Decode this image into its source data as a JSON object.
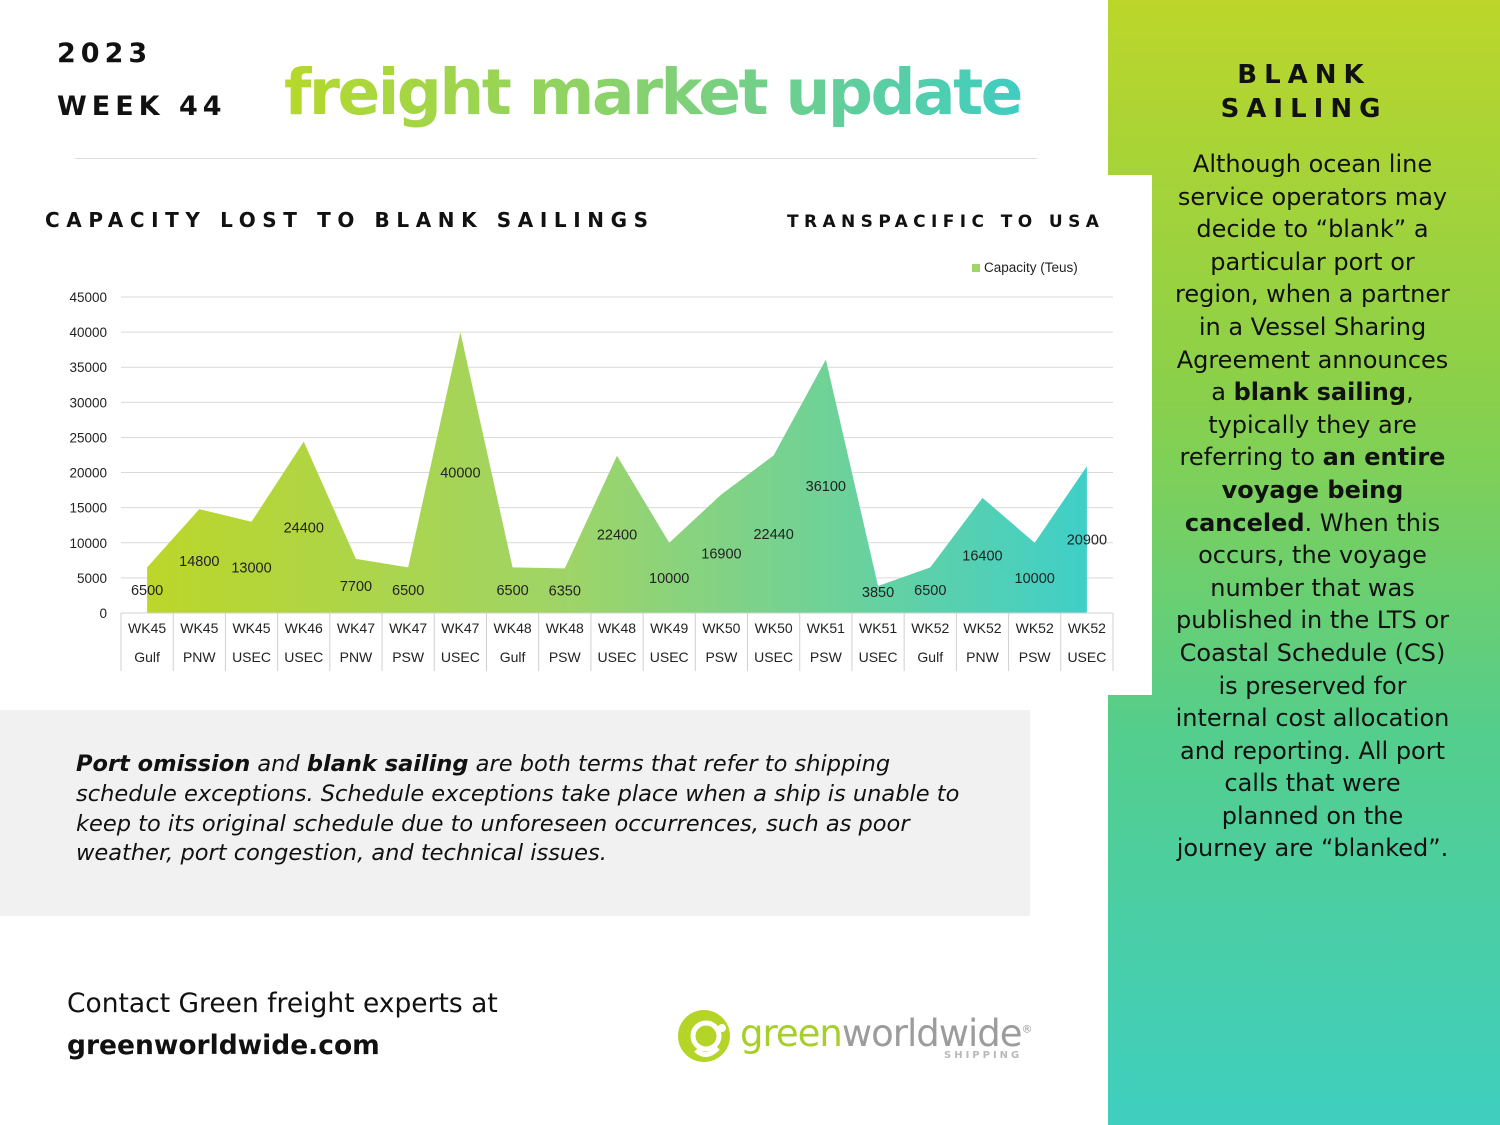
{
  "header": {
    "year": "2023",
    "week": "WEEK 44",
    "headline": "freight market update"
  },
  "chart_section": {
    "title": "CAPACITY LOST TO BLANK SAILINGS",
    "subtitle": "TRANSPACIFIC TO USA"
  },
  "chart_data": {
    "type": "area",
    "categories": [
      [
        "WK45",
        "Gulf"
      ],
      [
        "WK45",
        "PNW"
      ],
      [
        "WK45",
        "USEC"
      ],
      [
        "WK46",
        "USEC"
      ],
      [
        "WK47",
        "PNW"
      ],
      [
        "WK47",
        "PSW"
      ],
      [
        "WK47",
        "USEC"
      ],
      [
        "WK48",
        "Gulf"
      ],
      [
        "WK48",
        "PSW"
      ],
      [
        "WK48",
        "USEC"
      ],
      [
        "WK49",
        "USEC"
      ],
      [
        "WK50",
        "PSW"
      ],
      [
        "WK50",
        "USEC"
      ],
      [
        "WK51",
        "PSW"
      ],
      [
        "WK51",
        "USEC"
      ],
      [
        "WK52",
        "Gulf"
      ],
      [
        "WK52",
        "PNW"
      ],
      [
        "WK52",
        "PSW"
      ],
      [
        "WK52",
        "USEC"
      ]
    ],
    "series": [
      {
        "name": "Capacity (Teus)",
        "values": [
          6500,
          14800,
          13000,
          24400,
          7700,
          6500,
          40000,
          6500,
          6350,
          22400,
          10000,
          16900,
          22440,
          36100,
          3850,
          6500,
          16400,
          10000,
          20900
        ]
      }
    ],
    "yticks": [
      0,
      5000,
      10000,
      15000,
      20000,
      25000,
      30000,
      35000,
      40000,
      45000
    ],
    "ylim": [
      0,
      45000
    ],
    "grid": true,
    "legend": "top-right",
    "colors": [
      "#bcd62a",
      "#3fcfc8"
    ]
  },
  "note": {
    "term1": "Port omission",
    "and": " and ",
    "term2": "blank sailing",
    "rest": " are both terms that refer to shipping schedule exceptions. Schedule exceptions take place when a ship is unable to keep to its original schedule due to unforeseen occurrences, such as poor weather, port congestion, and technical issues."
  },
  "contact": {
    "line": "Contact Green freight experts at",
    "url": "greenworldwide.com"
  },
  "logo": {
    "word_green": "green",
    "word_rest": "worldwide",
    "registered": "®",
    "sub": "SHIPPING"
  },
  "side": {
    "title_line1": "BLANK",
    "title_line2": "SAILING",
    "p1": "Although ocean line service operators may decide to “blank” a particular port or region, when a partner in a Vessel Sharing Agreement announces a ",
    "b1": "blank sailing",
    "p2": ", typically they are referring to ",
    "b2": "an entire voyage being canceled",
    "p3": ". When this occurs, the voyage number that was published in the LTS or Coastal Schedule (CS) is preserved for internal cost allocation and reporting. All port calls that were planned on the journey are “blanked”."
  },
  "colors": {
    "accent_lime": "#bcd62a",
    "accent_teal": "#3fcfc0",
    "note_bg": "#f1f1f1"
  }
}
